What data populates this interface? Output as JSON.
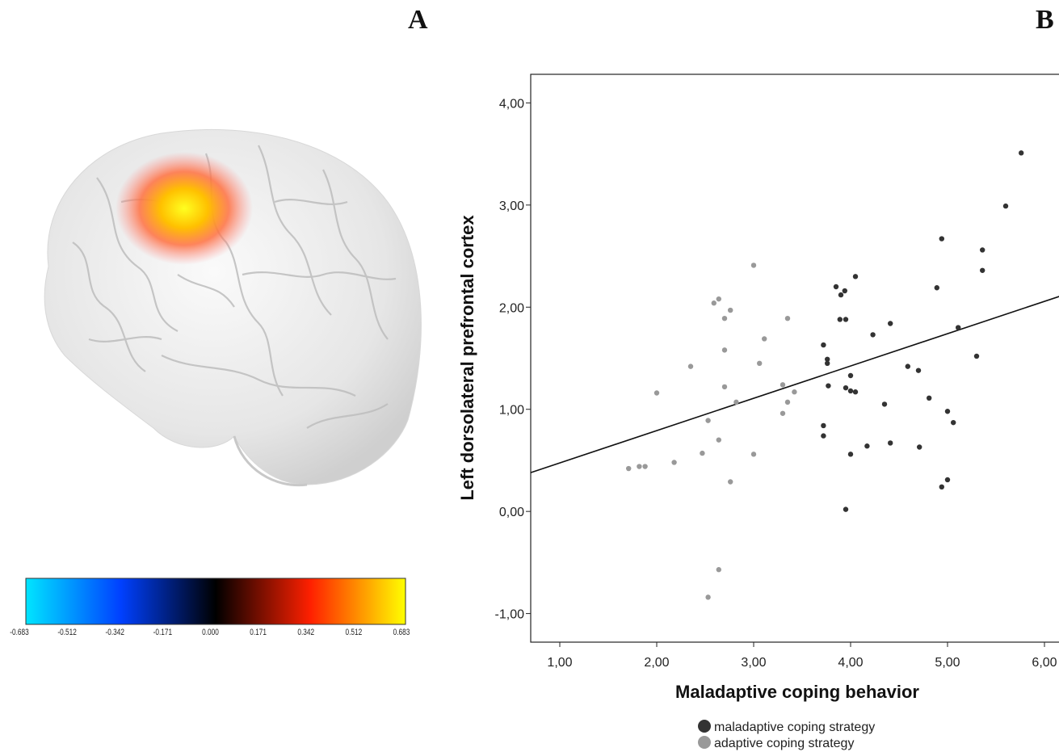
{
  "panels": {
    "a_label": "A",
    "b_label": "B"
  },
  "colorbar": {
    "ticks": [
      "-0.683",
      "-0.512",
      "-0.342",
      "-0.171",
      "0.000",
      "0.171",
      "0.342",
      "0.512",
      "0.683"
    ],
    "colors": [
      "#00e5ff",
      "#0040ff",
      "#000000",
      "#ff2000",
      "#ffff00"
    ]
  },
  "chart_data": {
    "type": "scatter",
    "xlabel": "Maladaptive coping behavior",
    "ylabel": "Left dorsolateral prefrontal cortex",
    "xlim": [
      0.7,
      6.2
    ],
    "ylim": [
      -1.28,
      4.28
    ],
    "x_ticks": [
      "1,00",
      "2,00",
      "3,00",
      "4,00",
      "5,00",
      "6,00"
    ],
    "y_ticks": [
      "-1,00",
      "0,00",
      "1,00",
      "2,00",
      "3,00",
      "4,00"
    ],
    "grid": false,
    "legend_position": "bottom-center",
    "fit_line": {
      "x": [
        0.7,
        6.2
      ],
      "y": [
        0.38,
        2.12
      ]
    },
    "series": [
      {
        "name": "maladaptive coping strategy",
        "color": "#333333",
        "points": [
          [
            5.76,
            3.51
          ],
          [
            5.6,
            2.99
          ],
          [
            4.94,
            2.67
          ],
          [
            5.36,
            2.56
          ],
          [
            5.36,
            2.36
          ],
          [
            4.89,
            2.19
          ],
          [
            4.05,
            2.3
          ],
          [
            3.85,
            2.2
          ],
          [
            3.94,
            2.16
          ],
          [
            3.9,
            2.12
          ],
          [
            3.89,
            1.88
          ],
          [
            3.95,
            1.88
          ],
          [
            4.41,
            1.84
          ],
          [
            5.11,
            1.8
          ],
          [
            4.23,
            1.73
          ],
          [
            3.72,
            1.63
          ],
          [
            3.76,
            1.49
          ],
          [
            3.76,
            1.45
          ],
          [
            5.3,
            1.52
          ],
          [
            4.59,
            1.42
          ],
          [
            4.7,
            1.38
          ],
          [
            4.0,
            1.33
          ],
          [
            3.77,
            1.23
          ],
          [
            3.95,
            1.21
          ],
          [
            4.0,
            1.18
          ],
          [
            4.05,
            1.17
          ],
          [
            4.81,
            1.11
          ],
          [
            4.35,
            1.05
          ],
          [
            5.0,
            0.98
          ],
          [
            5.06,
            0.87
          ],
          [
            3.72,
            0.84
          ],
          [
            3.72,
            0.74
          ],
          [
            4.41,
            0.67
          ],
          [
            4.17,
            0.64
          ],
          [
            4.71,
            0.63
          ],
          [
            4.0,
            0.56
          ],
          [
            5.0,
            0.31
          ],
          [
            4.94,
            0.24
          ],
          [
            3.95,
            0.02
          ]
        ]
      },
      {
        "name": "adaptive coping strategy",
        "color": "#999999",
        "points": [
          [
            3.0,
            2.41
          ],
          [
            2.64,
            2.08
          ],
          [
            2.59,
            2.04
          ],
          [
            2.76,
            1.97
          ],
          [
            2.7,
            1.89
          ],
          [
            3.35,
            1.89
          ],
          [
            3.11,
            1.69
          ],
          [
            2.7,
            1.58
          ],
          [
            3.06,
            1.45
          ],
          [
            2.35,
            1.42
          ],
          [
            3.3,
            1.24
          ],
          [
            2.7,
            1.22
          ],
          [
            3.42,
            1.17
          ],
          [
            2.0,
            1.16
          ],
          [
            2.82,
            1.07
          ],
          [
            3.35,
            1.07
          ],
          [
            3.3,
            0.96
          ],
          [
            2.53,
            0.89
          ],
          [
            2.64,
            0.7
          ],
          [
            2.47,
            0.57
          ],
          [
            3.0,
            0.56
          ],
          [
            2.18,
            0.48
          ],
          [
            1.88,
            0.44
          ],
          [
            1.82,
            0.44
          ],
          [
            1.71,
            0.42
          ],
          [
            2.76,
            0.29
          ],
          [
            2.64,
            -0.57
          ],
          [
            2.53,
            -0.84
          ]
        ]
      }
    ]
  }
}
